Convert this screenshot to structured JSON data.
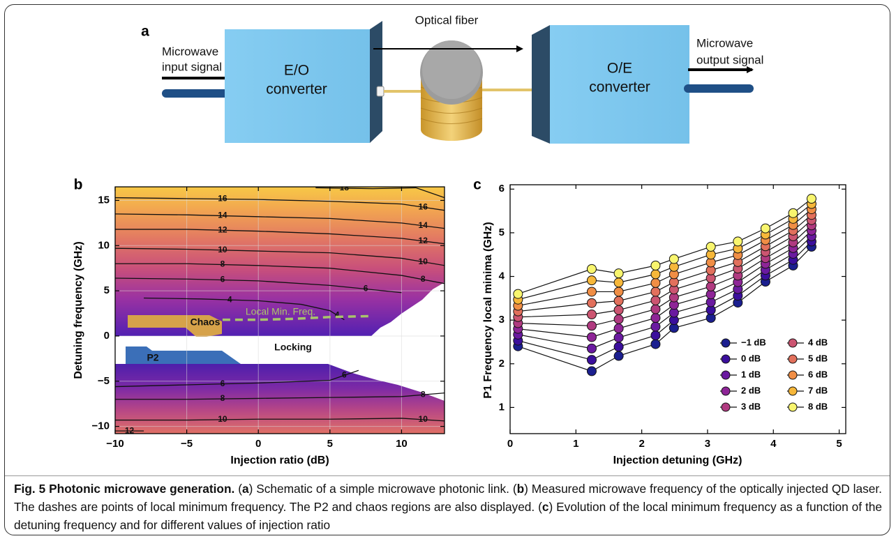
{
  "panel_a": {
    "label": "a",
    "input": [
      "Microwave",
      "input signal"
    ],
    "eo": [
      "E/O",
      "converter"
    ],
    "fiber": "Optical fiber",
    "oe": [
      "O/E",
      "converter"
    ],
    "output": [
      "Microwave",
      "output signal"
    ]
  },
  "chart_data": [
    {
      "type": "contour",
      "panel_label": "b",
      "xlabel": "Injection ratio (dB)",
      "ylabel": "Detuning frequency (GHz)",
      "xlim": [
        -10,
        13
      ],
      "ylim": [
        -10.8,
        16.5
      ],
      "xticks": [
        {
          "value": -10,
          "label": "−10"
        },
        {
          "value": -5,
          "label": "−5"
        },
        0,
        5,
        10
      ],
      "yticks": [
        {
          "value": -10,
          "label": "−10"
        },
        {
          "value": -5,
          "label": "−5"
        },
        0,
        5,
        10,
        15
      ],
      "grid": true,
      "contours": [
        {
          "level": 18,
          "x": [
            4,
            8,
            11,
            13
          ],
          "y": [
            16.4,
            16.3,
            16.4,
            15.3
          ]
        },
        {
          "level": 16,
          "x": [
            -10,
            -5,
            0,
            5,
            10,
            13
          ],
          "y": [
            15.3,
            15.2,
            15.1,
            14.9,
            14.6,
            13.9
          ]
        },
        {
          "level": 14,
          "x": [
            -10,
            -5,
            0,
            5,
            10,
            13
          ],
          "y": [
            13.5,
            13.4,
            13.2,
            13.0,
            12.5,
            11.9
          ]
        },
        {
          "level": 12,
          "x": [
            -10,
            -5,
            0,
            5,
            10,
            13
          ],
          "y": [
            11.8,
            11.8,
            11.6,
            11.3,
            10.8,
            10.2
          ]
        },
        {
          "level": 10,
          "x": [
            -10,
            -5,
            0,
            5,
            10,
            13
          ],
          "y": [
            9.7,
            9.6,
            9.4,
            9.2,
            8.6,
            7.8
          ]
        },
        {
          "level": 8,
          "x": [
            -10,
            -5,
            0,
            5,
            10,
            13
          ],
          "y": [
            8.0,
            8.0,
            7.8,
            7.5,
            6.7,
            5.8
          ]
        },
        {
          "level": 6,
          "x": [
            -10,
            -5,
            0,
            5,
            10
          ],
          "y": [
            6.4,
            6.3,
            6.1,
            5.6,
            4.8
          ]
        },
        {
          "level": 4,
          "x": [
            -8,
            -4,
            0,
            3,
            5,
            6
          ],
          "y": [
            4.2,
            4.1,
            3.9,
            3.5,
            2.8,
            1.8
          ]
        },
        {
          "level": 6,
          "x": [
            -10,
            -5,
            0,
            5,
            7
          ],
          "y": [
            -5.6,
            -5.4,
            -5.2,
            -4.9,
            -3.8
          ]
        },
        {
          "level": 8,
          "x": [
            -10,
            -5,
            0,
            5,
            10,
            13
          ],
          "y": [
            -7.0,
            -7.0,
            -6.9,
            -6.8,
            -6.7,
            -6.3
          ]
        },
        {
          "level": 10,
          "x": [
            -10,
            -5,
            0,
            5,
            10,
            13
          ],
          "y": [
            -9.3,
            -9.3,
            -9.2,
            -9.2,
            -9.1,
            -9.4
          ]
        },
        {
          "level": 12,
          "x": [
            -10,
            -8
          ],
          "y": [
            -10.5,
            -10.5
          ]
        }
      ],
      "regions": [
        "Chaos",
        "P2",
        "Locking"
      ],
      "local_min": {
        "name": "Local Min. Freq.",
        "color": "#a9c46c",
        "x": [
          -2.5,
          0,
          2.5,
          5,
          7.8
        ],
        "y": [
          1.8,
          1.8,
          1.9,
          2.1,
          2.2
        ]
      }
    },
    {
      "type": "line",
      "panel_label": "c",
      "xlabel": "Injection detuning (GHz)",
      "ylabel": "P1 Frequency local minima (GHz)",
      "xlim": [
        0,
        5.1
      ],
      "ylim": [
        0.4,
        6.1
      ],
      "xticks": [
        0,
        1,
        2,
        3,
        4,
        5
      ],
      "yticks": [
        1,
        2,
        3,
        4,
        5,
        6
      ],
      "grid": false,
      "legend": "lower right",
      "x": [
        0.12,
        1.24,
        1.65,
        2.21,
        2.49,
        3.05,
        3.46,
        3.88,
        4.3,
        4.58
      ],
      "series": [
        {
          "name": "−1 dB",
          "color": "#1b1f8f",
          "values": [
            2.4,
            1.83,
            2.18,
            2.45,
            2.82,
            3.05,
            3.4,
            3.88,
            4.25,
            4.68
          ]
        },
        {
          "name": "0 dB",
          "color": "#3b0f9c",
          "values": [
            2.53,
            2.09,
            2.39,
            2.65,
            3.0,
            3.23,
            3.56,
            4.02,
            4.38,
            4.8
          ]
        },
        {
          "name": "1 dB",
          "color": "#6a1aa0",
          "values": [
            2.67,
            2.35,
            2.6,
            2.85,
            3.17,
            3.41,
            3.71,
            4.15,
            4.52,
            4.92
          ]
        },
        {
          "name": "2 dB",
          "color": "#8e2597",
          "values": [
            2.8,
            2.61,
            2.81,
            3.05,
            3.35,
            3.59,
            3.87,
            4.29,
            4.65,
            5.05
          ]
        },
        {
          "name": "3 dB",
          "color": "#b03a80",
          "values": [
            2.93,
            2.87,
            3.02,
            3.25,
            3.52,
            3.77,
            4.02,
            4.42,
            4.78,
            5.17
          ]
        },
        {
          "name": "4 dB",
          "color": "#cc5571",
          "values": [
            3.07,
            3.13,
            3.23,
            3.45,
            3.7,
            3.96,
            4.18,
            4.56,
            4.92,
            5.29
          ]
        },
        {
          "name": "5 dB",
          "color": "#e2705c",
          "values": [
            3.2,
            3.39,
            3.44,
            3.65,
            3.87,
            4.14,
            4.33,
            4.69,
            5.05,
            5.41
          ]
        },
        {
          "name": "6 dB",
          "color": "#f08e45",
          "values": [
            3.33,
            3.65,
            3.65,
            3.85,
            4.05,
            4.32,
            4.49,
            4.83,
            5.18,
            5.54
          ]
        },
        {
          "name": "7 dB",
          "color": "#f6b73a",
          "values": [
            3.47,
            3.91,
            3.86,
            4.05,
            4.22,
            4.5,
            4.64,
            4.96,
            5.32,
            5.66
          ]
        },
        {
          "name": "8 dB",
          "color": "#f8f56e",
          "values": [
            3.6,
            4.17,
            4.07,
            4.25,
            4.4,
            4.68,
            4.8,
            5.1,
            5.45,
            5.78
          ]
        }
      ]
    }
  ],
  "caption": {
    "runs": [
      {
        "text": "Fig. 5 Photonic microwave generation.",
        "bold": true
      },
      {
        "text": " ("
      },
      {
        "text": "a",
        "bold": true
      },
      {
        "text": ") Schematic of a simple microwave photonic link. ("
      },
      {
        "text": "b",
        "bold": true
      },
      {
        "text": ") Measured microwave frequency of the optically injected QD laser. The dashes are points of local minimum frequency. The P2 and chaos regions are also displayed. ("
      },
      {
        "text": "c",
        "bold": true
      },
      {
        "text": ") Evolution of the local minimum frequency as a function of the detuning frequency and for different values of injection ratio"
      }
    ]
  }
}
